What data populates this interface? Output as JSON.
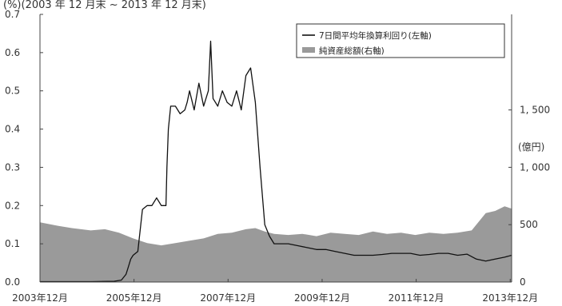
{
  "chart_data": {
    "type": "line+area",
    "header_text": "(%)(2003 年 12 月末 ~ 2013 年 12 月末)",
    "left_axis": {
      "ylim": [
        0,
        0.7
      ],
      "ticks": [
        "0.0",
        "0.1",
        "0.2",
        "0.3",
        "0.4",
        "0.5",
        "0.6",
        "0.7"
      ]
    },
    "right_axis": {
      "unit_label": "(億円)",
      "ylim": [
        0,
        2333
      ],
      "ticks": [
        "0",
        "500",
        "1, 000",
        "1, 500"
      ]
    },
    "x_ticks": [
      "2003年12月",
      "2005年12月",
      "2007年12月",
      "2009年12月",
      "2011年12月",
      "2013年12月"
    ],
    "legend": [
      {
        "label": "7日間平均年換算利回り(左軸)",
        "kind": "line",
        "color": "#111111"
      },
      {
        "label": "純資産総額(右軸)",
        "kind": "area",
        "color": "#9a9a9a"
      }
    ],
    "series": [
      {
        "name": "7日間平均年換算利回り(左軸)",
        "axis": "left",
        "x": [
          2003.92,
          2004.5,
          2005.0,
          2005.5,
          2005.65,
          2005.75,
          2005.8,
          2005.85,
          2005.9,
          2006.0,
          2006.1,
          2006.2,
          2006.3,
          2006.4,
          2006.5,
          2006.6,
          2006.62,
          2006.65,
          2006.7,
          2006.8,
          2006.9,
          2007.0,
          2007.05,
          2007.1,
          2007.2,
          2007.3,
          2007.4,
          2007.5,
          2007.55,
          2007.6,
          2007.7,
          2007.8,
          2007.9,
          2008.0,
          2008.1,
          2008.2,
          2008.3,
          2008.4,
          2008.5,
          2008.6,
          2008.7,
          2008.8,
          2008.9,
          2009.0,
          2009.2,
          2009.4,
          2009.6,
          2009.8,
          2010.0,
          2010.2,
          2010.4,
          2010.6,
          2010.8,
          2011.0,
          2011.2,
          2011.4,
          2011.6,
          2011.8,
          2012.0,
          2012.2,
          2012.4,
          2012.6,
          2012.8,
          2013.0,
          2013.2,
          2013.4,
          2013.6,
          2013.8,
          2013.95
        ],
        "values": [
          0.001,
          0.001,
          0.001,
          0.002,
          0.005,
          0.02,
          0.04,
          0.06,
          0.07,
          0.08,
          0.19,
          0.2,
          0.2,
          0.22,
          0.2,
          0.2,
          0.3,
          0.4,
          0.46,
          0.46,
          0.44,
          0.45,
          0.47,
          0.5,
          0.45,
          0.52,
          0.46,
          0.5,
          0.63,
          0.48,
          0.46,
          0.5,
          0.47,
          0.46,
          0.5,
          0.45,
          0.54,
          0.56,
          0.47,
          0.3,
          0.15,
          0.12,
          0.1,
          0.1,
          0.1,
          0.095,
          0.09,
          0.085,
          0.085,
          0.08,
          0.075,
          0.07,
          0.07,
          0.07,
          0.072,
          0.075,
          0.075,
          0.075,
          0.07,
          0.072,
          0.075,
          0.075,
          0.07,
          0.073,
          0.06,
          0.055,
          0.06,
          0.065,
          0.07
        ]
      },
      {
        "name": "純資産総額(右軸)",
        "axis": "right",
        "x": [
          2003.92,
          2004.3,
          2004.6,
          2005.0,
          2005.3,
          2005.6,
          2005.9,
          2006.2,
          2006.5,
          2006.8,
          2007.1,
          2007.4,
          2007.7,
          2008.0,
          2008.3,
          2008.5,
          2008.7,
          2008.9,
          2009.2,
          2009.5,
          2009.8,
          2010.1,
          2010.4,
          2010.7,
          2011.0,
          2011.3,
          2011.6,
          2011.9,
          2012.2,
          2012.5,
          2012.8,
          2013.1,
          2013.4,
          2013.6,
          2013.8,
          2013.95
        ],
        "values": [
          520,
          490,
          470,
          450,
          460,
          430,
          380,
          340,
          320,
          340,
          360,
          380,
          420,
          430,
          460,
          470,
          440,
          420,
          410,
          420,
          400,
          430,
          420,
          410,
          440,
          420,
          430,
          410,
          430,
          420,
          430,
          450,
          600,
          620,
          660,
          640
        ]
      }
    ]
  }
}
